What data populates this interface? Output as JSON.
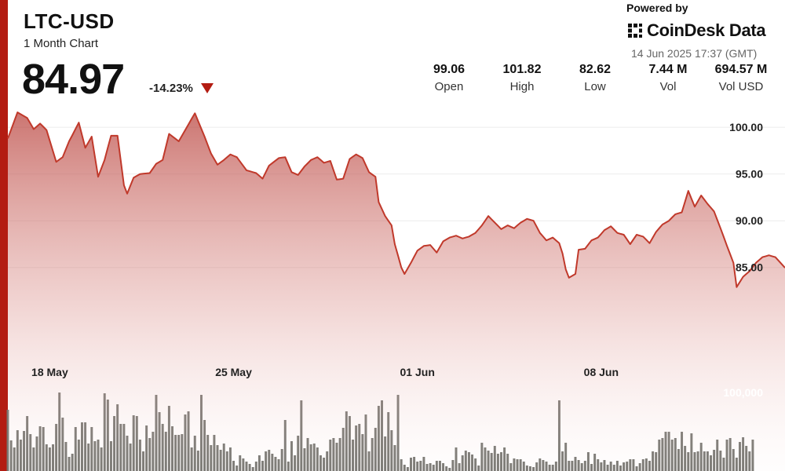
{
  "header": {
    "ticker": "LTC-USD",
    "subtitle": "1 Month Chart",
    "price": "84.97",
    "change": "-14.23%",
    "powered_by": "Powered by",
    "brand": "CoinDesk Data",
    "timestamp": "14 Jun 2025 17:37 (GMT)",
    "stats": [
      {
        "value": "99.06",
        "label": "Open"
      },
      {
        "value": "101.82",
        "label": "High"
      },
      {
        "value": "82.62",
        "label": "Low"
      },
      {
        "value": "7.44 M",
        "label": "Vol"
      },
      {
        "value": "694.57 M",
        "label": "Vol USD"
      }
    ]
  },
  "colors": {
    "accent": "#b31c12",
    "line": "#c0392b",
    "volume_bar": "#777772",
    "down_arrow": "#b31c12"
  },
  "chart_data": {
    "type": "line",
    "title": "LTC-USD",
    "subtitle": "1 Month Chart",
    "price_axis": {
      "ticks": [
        "85.00",
        "90.00",
        "95.00",
        "100.00"
      ],
      "tick_values": [
        85,
        90,
        95,
        100
      ],
      "ylim": [
        77.5,
        102.7
      ]
    },
    "volume_axis": {
      "tick_label": "100,000",
      "tick_value": 100000,
      "max": 200000
    },
    "x_axis": {
      "labels": [
        "18 May",
        "25 May",
        "01 Jun",
        "08 Jun"
      ],
      "label_index": [
        13,
        70,
        127,
        184
      ],
      "n_points": 242
    },
    "price_anchors": [
      [
        0,
        98.8
      ],
      [
        3,
        101.6
      ],
      [
        6,
        101.0
      ],
      [
        8,
        99.8
      ],
      [
        10,
        100.4
      ],
      [
        12,
        99.7
      ],
      [
        15,
        96.3
      ],
      [
        17,
        96.8
      ],
      [
        19,
        98.5
      ],
      [
        22,
        100.5
      ],
      [
        24,
        97.8
      ],
      [
        26,
        99.0
      ],
      [
        28,
        94.7
      ],
      [
        30,
        96.5
      ],
      [
        32,
        99.1
      ],
      [
        34,
        99.1
      ],
      [
        36,
        93.8
      ],
      [
        37,
        92.9
      ],
      [
        39,
        94.6
      ],
      [
        41,
        95.0
      ],
      [
        44,
        95.1
      ],
      [
        46,
        96.1
      ],
      [
        48,
        96.5
      ],
      [
        50,
        99.3
      ],
      [
        53,
        98.5
      ],
      [
        56,
        100.3
      ],
      [
        58,
        101.5
      ],
      [
        61,
        99.0
      ],
      [
        63,
        97.2
      ],
      [
        65,
        96.0
      ],
      [
        67,
        96.5
      ],
      [
        69,
        97.1
      ],
      [
        71,
        96.8
      ],
      [
        74,
        95.4
      ],
      [
        77,
        95.1
      ],
      [
        79,
        94.5
      ],
      [
        81,
        95.9
      ],
      [
        84,
        96.7
      ],
      [
        86,
        96.8
      ],
      [
        88,
        95.2
      ],
      [
        90,
        94.9
      ],
      [
        92,
        95.8
      ],
      [
        94,
        96.5
      ],
      [
        96,
        96.8
      ],
      [
        98,
        96.2
      ],
      [
        100,
        96.4
      ],
      [
        102,
        94.4
      ],
      [
        104,
        94.5
      ],
      [
        106,
        96.6
      ],
      [
        108,
        97.1
      ],
      [
        110,
        96.7
      ],
      [
        112,
        95.2
      ],
      [
        114,
        94.7
      ],
      [
        115,
        92.0
      ],
      [
        117,
        90.5
      ],
      [
        119,
        89.5
      ],
      [
        120,
        87.5
      ],
      [
        122,
        85.0
      ],
      [
        123,
        84.3
      ],
      [
        125,
        85.5
      ],
      [
        127,
        86.8
      ],
      [
        129,
        87.3
      ],
      [
        131,
        87.4
      ],
      [
        133,
        86.6
      ],
      [
        135,
        87.8
      ],
      [
        137,
        88.2
      ],
      [
        139,
        88.4
      ],
      [
        141,
        88.1
      ],
      [
        143,
        88.3
      ],
      [
        145,
        88.7
      ],
      [
        147,
        89.5
      ],
      [
        149,
        90.5
      ],
      [
        151,
        89.8
      ],
      [
        153,
        89.1
      ],
      [
        155,
        89.5
      ],
      [
        157,
        89.2
      ],
      [
        159,
        89.8
      ],
      [
        161,
        90.2
      ],
      [
        163,
        90.0
      ],
      [
        165,
        88.7
      ],
      [
        167,
        87.9
      ],
      [
        169,
        88.2
      ],
      [
        171,
        87.6
      ],
      [
        172,
        86.5
      ],
      [
        173,
        84.8
      ],
      [
        174,
        83.9
      ],
      [
        176,
        84.3
      ],
      [
        177,
        86.9
      ],
      [
        179,
        87.0
      ],
      [
        181,
        87.9
      ],
      [
        183,
        88.2
      ],
      [
        185,
        89.0
      ],
      [
        187,
        89.4
      ],
      [
        189,
        88.7
      ],
      [
        191,
        88.5
      ],
      [
        193,
        87.5
      ],
      [
        195,
        88.5
      ],
      [
        197,
        88.3
      ],
      [
        199,
        87.6
      ],
      [
        201,
        88.8
      ],
      [
        203,
        89.6
      ],
      [
        205,
        90.0
      ],
      [
        207,
        90.7
      ],
      [
        209,
        90.9
      ],
      [
        211,
        93.2
      ],
      [
        213,
        91.5
      ],
      [
        215,
        92.7
      ],
      [
        217,
        91.8
      ],
      [
        219,
        91.0
      ],
      [
        221,
        89.2
      ],
      [
        223,
        87.3
      ],
      [
        225,
        85.5
      ],
      [
        226,
        82.9
      ],
      [
        228,
        84.0
      ],
      [
        230,
        84.6
      ],
      [
        232,
        85.5
      ],
      [
        234,
        86.1
      ],
      [
        236,
        86.3
      ],
      [
        238,
        86.1
      ],
      [
        241,
        84.97
      ]
    ],
    "volume": [
      78000,
      39000,
      30000,
      52000,
      40000,
      51000,
      70000,
      47000,
      30000,
      44000,
      57000,
      56000,
      34000,
      30000,
      34000,
      60000,
      100000,
      68000,
      37000,
      18000,
      22000,
      56000,
      40000,
      62000,
      62000,
      35000,
      56000,
      38000,
      40000,
      30000,
      99000,
      91000,
      38000,
      70000,
      85000,
      60000,
      60000,
      45000,
      35000,
      71000,
      70000,
      40000,
      25000,
      58000,
      42000,
      50000,
      97000,
      75000,
      60000,
      50000,
      83000,
      57000,
      46000,
      46000,
      47000,
      72000,
      76000,
      30000,
      45000,
      26000,
      97000,
      65000,
      46000,
      33000,
      46000,
      33000,
      27000,
      35000,
      25000,
      30000,
      13000,
      7000,
      20000,
      16000,
      12000,
      9000,
      5000,
      12000,
      20000,
      13000,
      25000,
      27000,
      22000,
      18000,
      15000,
      28000,
      65000,
      12000,
      38000,
      20000,
      45000,
      90000,
      29000,
      42000,
      34000,
      35000,
      30000,
      20000,
      17000,
      25000,
      40000,
      42000,
      36000,
      42000,
      55000,
      76000,
      70000,
      40000,
      58000,
      60000,
      47000,
      72000,
      25000,
      42000,
      55000,
      83000,
      90000,
      44000,
      75000,
      52000,
      33000,
      97000,
      15000,
      8000,
      5000,
      17000,
      18000,
      12000,
      13000,
      18000,
      9000,
      10000,
      8000,
      13000,
      13000,
      10000,
      6000,
      4000,
      14000,
      30000,
      10000,
      20000,
      26000,
      24000,
      21000,
      16000,
      7000,
      36000,
      30000,
      26000,
      23000,
      32000,
      22000,
      24000,
      30000,
      22000,
      10000,
      16000,
      15000,
      15000,
      12000,
      7000,
      6000,
      5000,
      11000,
      16000,
      14000,
      12000,
      8000,
      8000,
      12000,
      90000,
      25000,
      36000,
      13000,
      13000,
      18000,
      14000,
      10000,
      13000,
      24000,
      9000,
      22000,
      15000,
      11000,
      14000,
      8000,
      12000,
      8000,
      13000,
      7000,
      11000,
      12000,
      15000,
      15000,
      6000,
      10000,
      15000,
      16000,
      13000,
      25000,
      24000,
      40000,
      42000,
      50000,
      50000,
      40000,
      42000,
      28000,
      50000,
      32000,
      24000,
      48000,
      24000,
      25000,
      36000,
      25000,
      25000,
      20000,
      27000,
      40000,
      26000,
      17000,
      40000,
      42000,
      28000,
      17000,
      37000,
      43000,
      32000,
      25000,
      40000
    ]
  }
}
